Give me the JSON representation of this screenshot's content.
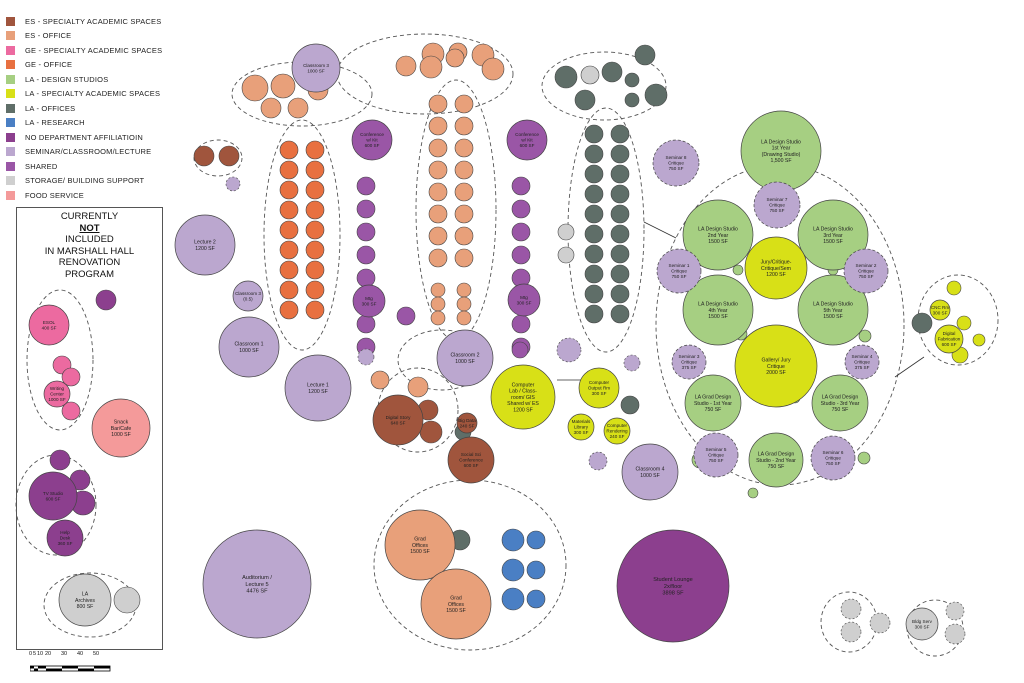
{
  "legend": [
    {
      "color": "#a0553d",
      "label": "ES - SPECIALTY ACADEMIC SPACES"
    },
    {
      "color": "#e8a07a",
      "label": "ES - OFFICE"
    },
    {
      "color": "#ec6aa0",
      "label": "GE - SPECIALTY ACADEMIC SPACES"
    },
    {
      "color": "#e87040",
      "label": "GE - OFFICE"
    },
    {
      "color": "#a6cf82",
      "label": "LA - DESIGN STUDIOS"
    },
    {
      "color": "#d8e017",
      "label": "LA - SPECIALTY ACADEMIC SPACES"
    },
    {
      "color": "#5f6e68",
      "label": "LA - OFFICES"
    },
    {
      "color": "#4a7fc4",
      "label": "LA - RESEARCH"
    },
    {
      "color": "#8c3f8e",
      "label": "NO DEPARTMENT AFFILIATIOIN"
    },
    {
      "color": "#bba7cf",
      "label": "SEMINAR/CLASSROOM/LECTURE"
    },
    {
      "color": "#9a56a6",
      "label": "SHARED"
    },
    {
      "color": "#cfcfcf",
      "label": "STORAGE/ BUILDING SUPPORT"
    },
    {
      "color": "#f49a9a",
      "label": "FOOD SERVICE"
    }
  ],
  "note": {
    "line1": "CURRENTLY",
    "line2": "NOT",
    "line3": "INCLUDED",
    "line4": "IN MARSHALL HALL",
    "line5": "RENOVATION",
    "line6": "PROGRAM"
  },
  "scale": {
    "labels": [
      "0",
      "5",
      "10",
      "20",
      "30",
      "40",
      "50"
    ]
  },
  "colors": {
    "es_special": "#a0553d",
    "es_office": "#e8a07a",
    "ge_special": "#ec6aa0",
    "ge_office": "#e87040",
    "la_studio": "#a6cf82",
    "la_special": "#d8e017",
    "la_office": "#5f6e68",
    "la_research": "#4a7fc4",
    "nodept": "#8c3f8e",
    "seminar": "#bba7cf",
    "shared": "#9a56a6",
    "storage": "#cfcfcf",
    "food": "#f49a9a"
  },
  "spaces": [
    {
      "label": "LA Design Studio\n1st Year\n(Drawing Studio)\n1,500 SF",
      "kind": "la_studio"
    },
    {
      "label": "LA Design Studio\n2nd Year\n1500 SF",
      "kind": "la_studio"
    },
    {
      "label": "LA Design Studio\n3rd Year\n1500 SF",
      "kind": "la_studio"
    },
    {
      "label": "LA Design Studio\n4th Year\n1500 SF",
      "kind": "la_studio"
    },
    {
      "label": "LA Design Studio\n5th Year\n1500 SF",
      "kind": "la_studio"
    },
    {
      "label": "Jury/Critique-\nCritique/Sem\n1200 SF",
      "kind": "la_special"
    },
    {
      "label": "Gallery/ Jury\nCritique\n2000 SF",
      "kind": "la_special"
    },
    {
      "label": "LA Grad Design\nStudio - 1st Year\n750 SF",
      "kind": "la_studio"
    },
    {
      "label": "LA Grad Design\nStudio - 3rd Year\n750 SF",
      "kind": "la_studio"
    },
    {
      "label": "LA Grad Design\nStudio - 2nd Year\n750 SF",
      "kind": "la_studio"
    },
    {
      "label": "Seminar 1\nCritique\n750 SF",
      "kind": "seminar"
    },
    {
      "label": "Seminar 2\nCritique\n750 SF",
      "kind": "seminar"
    },
    {
      "label": "Seminar 3\nCritique\n375 SF",
      "kind": "seminar"
    },
    {
      "label": "Seminar 4\nCritique\n375 SF",
      "kind": "seminar"
    },
    {
      "label": "Seminar 5\nCritique\n750 SF",
      "kind": "seminar"
    },
    {
      "label": "Seminar 6\nCritique\n750 SF",
      "kind": "seminar"
    },
    {
      "label": "Seminar 7\nCritique\n750 SF",
      "kind": "seminar"
    },
    {
      "label": "Seminar 8\nCritique\n750 SF",
      "kind": "seminar"
    },
    {
      "label": "Computer\nLab / Class-\nroom/ GIS\nShared w/ ES\n1200 SF",
      "kind": "la_special"
    },
    {
      "label": "Computer\nOutput Rm\n300 SF",
      "kind": "la_special"
    },
    {
      "label": "Materials\nLibrary\n300 SF",
      "kind": "la_special"
    },
    {
      "label": "Computer\nRendering\n240 SF",
      "kind": "la_special"
    },
    {
      "label": "Classroom 1\n1000 SF",
      "kind": "seminar"
    },
    {
      "label": "Classroom 2\n1000 SF",
      "kind": "seminar"
    },
    {
      "label": "Classroom 3\n1000 SF",
      "kind": "seminar"
    },
    {
      "label": "Classroom 4\n1000 SF",
      "kind": "seminar"
    },
    {
      "label": "Lecture 1\n1200 SF",
      "kind": "seminar"
    },
    {
      "label": "Lecture 2\n1200 SF",
      "kind": "seminar"
    },
    {
      "label": "Auditorium /\nLecture 5\n4476 SF",
      "kind": "seminar"
    },
    {
      "label": "Student Lounge\n2x/floor\n3898 SF",
      "kind": "nodept"
    },
    {
      "label": "Grad\nOffices\n1500 SF",
      "kind": "es_office"
    },
    {
      "label": "Grad\nOffices\n1500 SF",
      "kind": "es_office"
    },
    {
      "label": "Digital Story\n640 SF",
      "kind": "es_special"
    },
    {
      "label": "Social Sci\nConference\n600 SF",
      "kind": "es_special"
    },
    {
      "label": "Big Data\n240 SF",
      "kind": "es_special"
    },
    {
      "label": "Conference\nw/ Kit\n600 SF",
      "kind": "shared"
    },
    {
      "label": "Conference\nw/ Kit\n600 SF",
      "kind": "shared"
    },
    {
      "label": "ESOL\n400 SF",
      "kind": "ge_special"
    },
    {
      "label": "Writing\nCenter\n1000 SF",
      "kind": "ge_special"
    },
    {
      "label": "Snack\nBar/Cafe\n1000 SF",
      "kind": "food"
    },
    {
      "label": "TV Studio\n600 SF",
      "kind": "nodept"
    },
    {
      "label": "Help\nDesk\n360 SF",
      "kind": "nodept"
    },
    {
      "label": "LA\nArchives\n800 SF",
      "kind": "storage"
    },
    {
      "label": "Bldg Serv\n300 SF",
      "kind": "storage"
    },
    {
      "label": "Mtg\n300 SF",
      "kind": "shared"
    },
    {
      "label": "Mtg\n300 SF",
      "kind": "shared"
    },
    {
      "label": "Digital\nFabrication\n600 SF",
      "kind": "la_special"
    },
    {
      "label": "CNC Rm\n300 SF",
      "kind": "la_special"
    },
    {
      "label": "Classroom 3\n(0.5)",
      "kind": "seminar"
    }
  ]
}
